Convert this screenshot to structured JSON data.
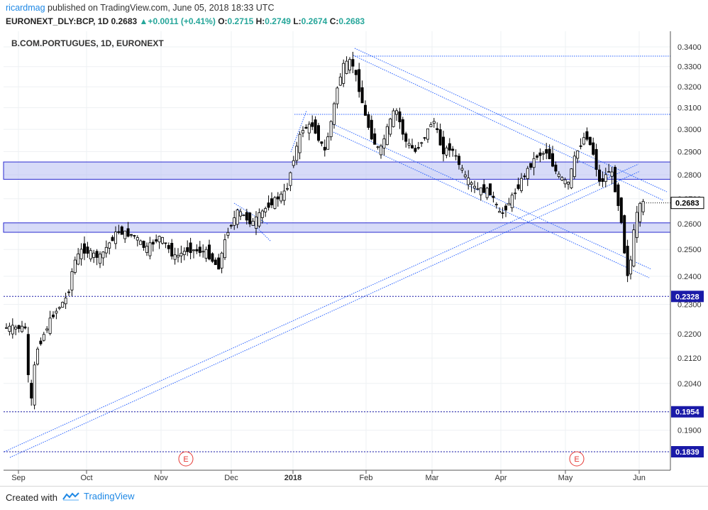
{
  "header": {
    "user": "ricardmag",
    "published": " published on TradingView.com, June 05, 2018 18:33 UTC",
    "symbol": "EURONEXT_DLY:BCP, 1D",
    "last": "0.2683",
    "change": "+0.0011 (+0.41%)",
    "o_label": "O:",
    "o_value": "0.2715",
    "h_label": "H:",
    "h_value": "0.2749",
    "l_label": "L:",
    "l_value": "0.2674",
    "c_label": "C:",
    "c_value": "0.2683"
  },
  "chart_data": {
    "type": "candlestick",
    "title": "B.COM.PORTUGUES, 1D, EURONEXT",
    "x_ticks": [
      "Sep",
      "Oct",
      "Nov",
      "Dec",
      "2018",
      "Feb",
      "Mar",
      "Apr",
      "May",
      "Jun"
    ],
    "y_ticks": [
      "0.3400",
      "0.3300",
      "0.3200",
      "0.3100",
      "0.3000",
      "0.2900",
      "0.2800",
      "0.2700",
      "0.2600",
      "0.2500",
      "0.2400",
      "0.2300",
      "0.2200",
      "0.2120",
      "0.2040",
      "0.1954",
      "0.1900",
      "0.1839"
    ],
    "y_scale": "log",
    "last_price": "0.2683",
    "levels": [
      "0.2328",
      "0.1954",
      "0.1839"
    ],
    "zones": [
      [
        0.2781,
        0.2855
      ],
      [
        0.2566,
        0.2603
      ]
    ],
    "event_markers": [
      "E",
      "E"
    ],
    "grid": true,
    "colors": {
      "up": "#ffffff",
      "down": "#000000",
      "lines": "#2962ff",
      "zone": "#b7bdf3"
    }
  },
  "footer": {
    "created": "Created with",
    "brand": "TradingView"
  }
}
